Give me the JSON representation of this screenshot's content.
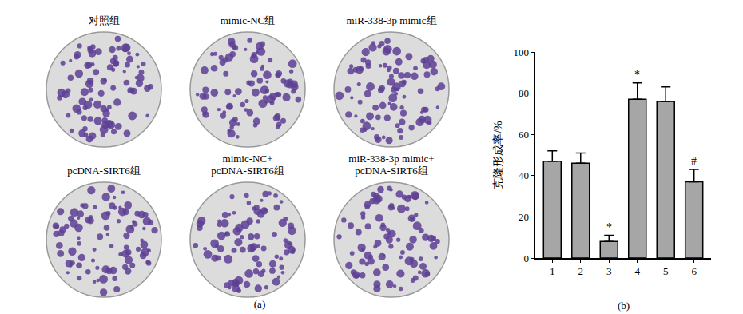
{
  "panel_a": {
    "label": "(a)",
    "plates": [
      {
        "label": [
          "对照组"
        ]
      },
      {
        "label": [
          "mimic-NC组"
        ]
      },
      {
        "label": [
          "miR-338-3p mimic组"
        ]
      },
      {
        "label": [
          "pcDNA-SIRT6组"
        ]
      },
      {
        "label": [
          "mimic-NC+",
          "pcDNA-SIRT6组"
        ]
      },
      {
        "label": [
          "miR-338-3p mimic+",
          "pcDNA-SIRT6组"
        ]
      }
    ]
  },
  "chart_data": {
    "type": "bar",
    "panel_label": "(b)",
    "ylabel": "克隆形成率/%",
    "categories": [
      "1",
      "2",
      "3",
      "4",
      "5",
      "6"
    ],
    "values": [
      47,
      46,
      8,
      77,
      76,
      37
    ],
    "error": [
      5,
      5,
      3,
      8,
      7,
      6
    ],
    "color": "#a6a6a6",
    "ylim": [
      0,
      100
    ],
    "yticks": [
      0,
      20,
      40,
      60,
      80,
      100
    ],
    "grid": false,
    "annotations": [
      {
        "category": "3",
        "text": "*"
      },
      {
        "category": "4",
        "text": "*"
      },
      {
        "category": "6",
        "text": "#"
      }
    ]
  }
}
